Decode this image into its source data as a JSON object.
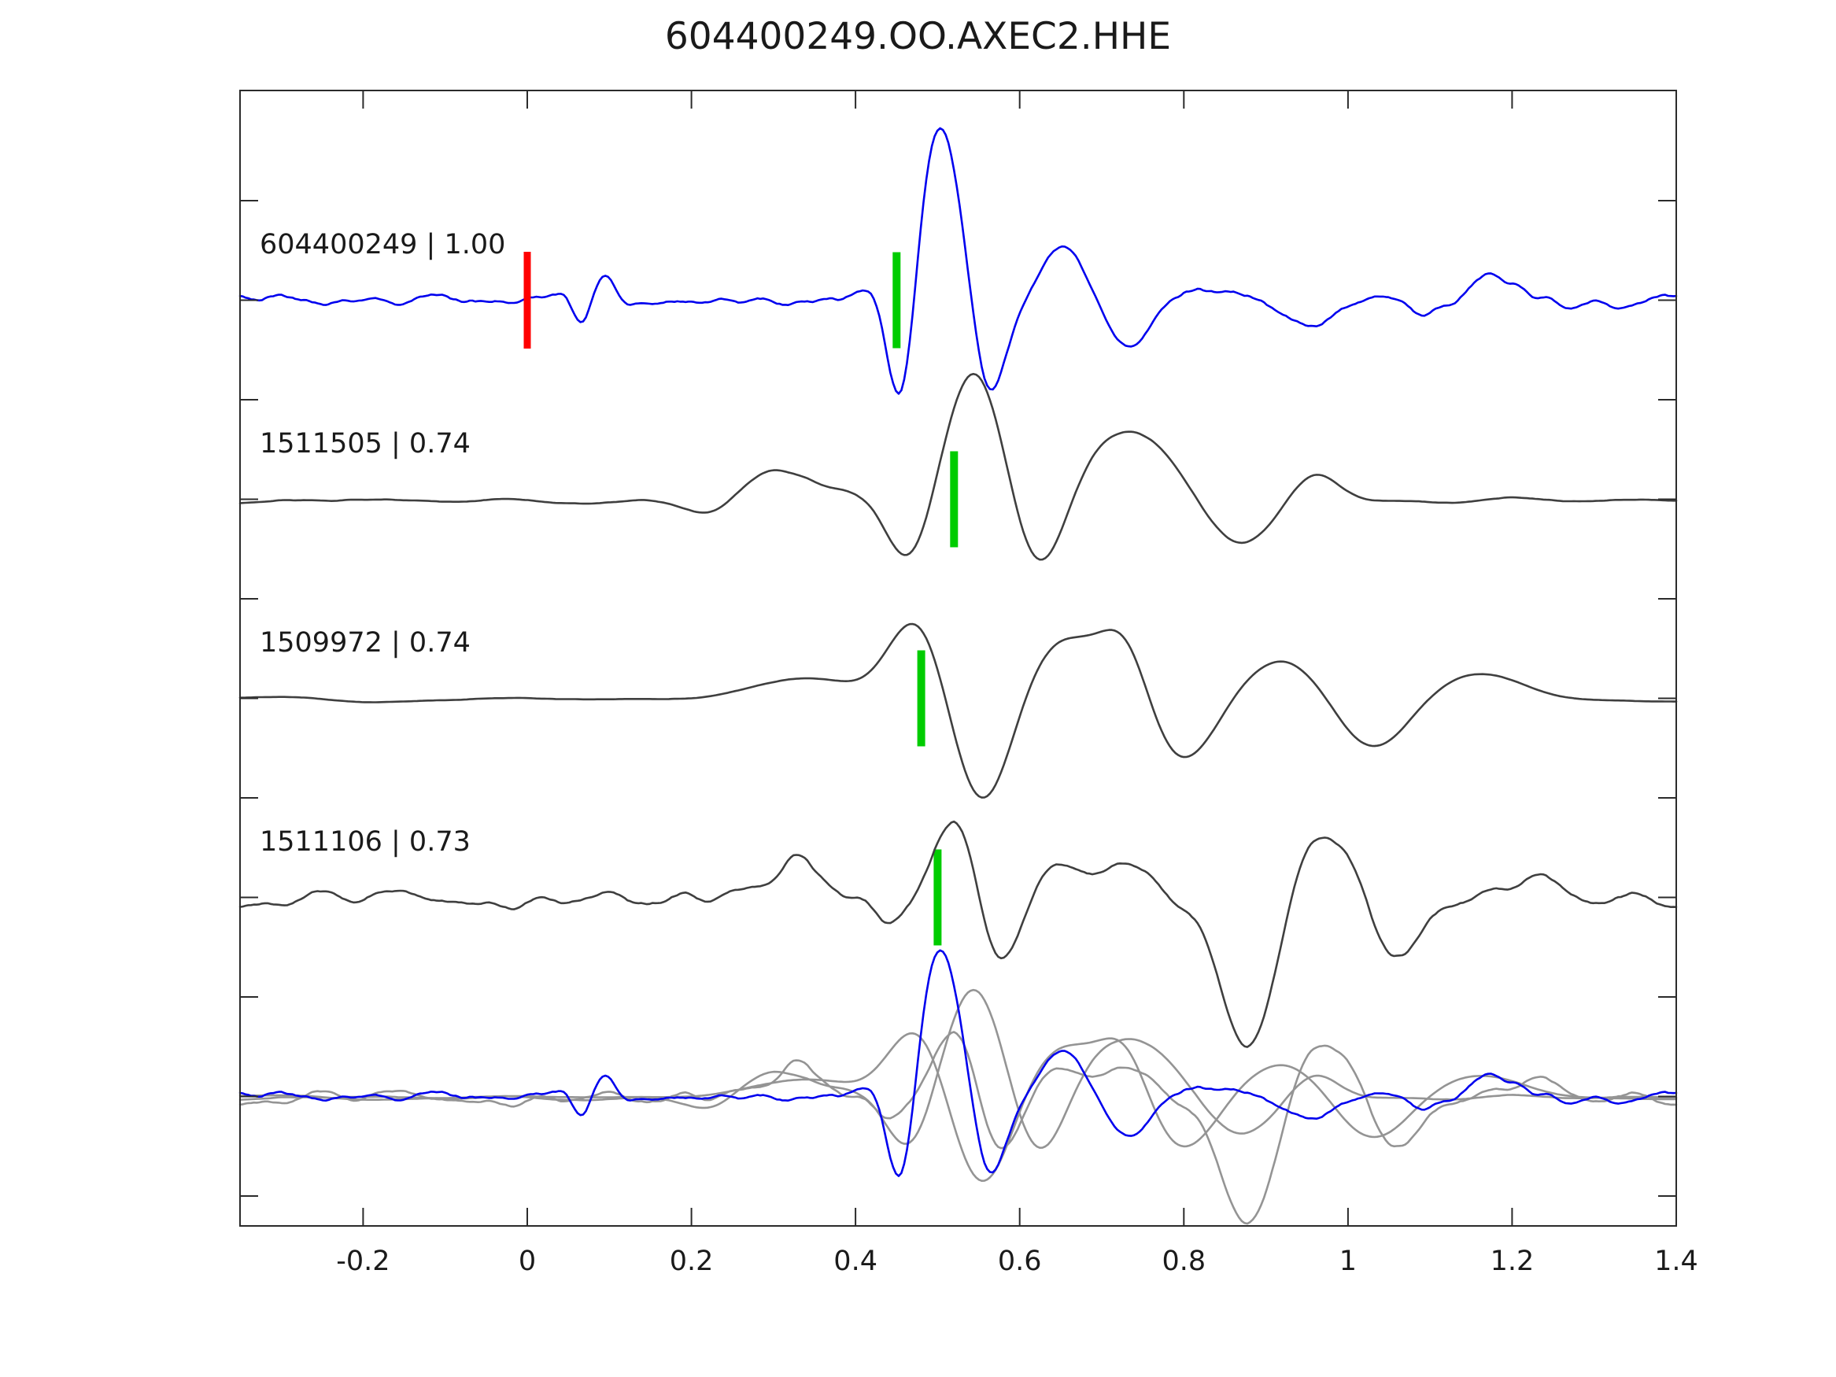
{
  "title": "604400249.OO.AXEC2.HHE",
  "colors": {
    "template_trace": "#0000ee",
    "detection_trace": "#3f3f3f",
    "overlay_gray": "#949494",
    "pick_marker": "#00cc00",
    "origin_marker": "#ff0000",
    "axis": "#2b2b2b",
    "text": "#1a1a1a"
  },
  "chart_data": {
    "type": "line",
    "title": "604400249.OO.AXEC2.HHE",
    "xlabel": "",
    "ylabel": "",
    "grid": false,
    "legend": null,
    "xlim": [
      -0.35,
      1.4
    ],
    "x_ticks": [
      -0.2,
      0,
      0.2,
      0.4,
      0.6,
      0.8,
      1,
      1.2,
      1.4
    ],
    "x_tick_labels": [
      "-0.2",
      "0",
      "0.2",
      "0.4",
      "0.6",
      "0.8",
      "1",
      "1.2",
      "1.4"
    ],
    "y_tick_count": 11,
    "description": "Template waveform (blue) and three correlated detections (dark gray), vertically offset; bottom row overlays all aligned traces (grays + blue). Green bars mark pick times, red bar marks template zero time.",
    "traces": [
      {
        "event_id": "604400249",
        "correlation": "1.00",
        "label": "604400249 | 1.00",
        "role": "template",
        "color_role": "template_trace",
        "row": 0,
        "pick_time": 0.45,
        "origin_time": 0.0,
        "noise": {
          "seed": 7,
          "amp": 13,
          "smooth": 3
        },
        "wavelets": [
          [
            0.065,
            -35,
            12,
            0.02
          ],
          [
            0.1,
            30,
            10,
            0.025
          ],
          [
            0.455,
            -110,
            9,
            0.035
          ],
          [
            0.505,
            200,
            5.5,
            0.05
          ],
          [
            0.565,
            -80,
            6,
            0.04
          ],
          [
            0.655,
            60,
            5,
            0.06
          ],
          [
            0.73,
            -45,
            4.5,
            0.08
          ],
          [
            0.95,
            -30,
            4,
            0.1
          ],
          [
            1.18,
            25,
            5,
            0.1
          ]
        ]
      },
      {
        "event_id": "1511505",
        "correlation": "0.74",
        "label": "1511505 | 0.74",
        "role": "detection",
        "color_role": "detection_trace",
        "row": 1,
        "pick_time": 0.52,
        "origin_time": null,
        "noise": {
          "seed": 21,
          "amp": 6,
          "smooth": 9
        },
        "wavelets": [
          [
            0.23,
            -28,
            3,
            0.05
          ],
          [
            0.3,
            40,
            2,
            0.1
          ],
          [
            0.465,
            -60,
            4.5,
            0.05
          ],
          [
            0.545,
            150,
            3.6,
            0.07
          ],
          [
            0.625,
            -70,
            4,
            0.06
          ],
          [
            0.73,
            80,
            2.2,
            0.1
          ],
          [
            0.87,
            -55,
            3,
            0.07
          ],
          [
            0.96,
            30,
            4,
            0.05
          ]
        ]
      },
      {
        "event_id": "1509972",
        "correlation": "0.74",
        "label": "1509972 | 0.74",
        "role": "detection",
        "color_role": "detection_trace",
        "row": 2,
        "pick_time": 0.48,
        "origin_time": null,
        "noise": {
          "seed": 33,
          "amp": 5,
          "smooth": 11
        },
        "wavelets": [
          [
            0.35,
            25,
            1.5,
            0.15
          ],
          [
            0.475,
            90,
            3,
            0.06
          ],
          [
            0.555,
            -125,
            3.2,
            0.065
          ],
          [
            0.67,
            75,
            2,
            0.1
          ],
          [
            0.73,
            40,
            5,
            0.05
          ],
          [
            0.8,
            -70,
            3,
            0.07
          ],
          [
            0.92,
            40,
            2.5,
            0.08
          ],
          [
            1.03,
            -60,
            2.8,
            0.08
          ],
          [
            1.17,
            25,
            2.5,
            0.1
          ]
        ]
      },
      {
        "event_id": "1511106",
        "correlation": "0.73",
        "label": "1511106 | 0.73",
        "role": "detection",
        "color_role": "detection_trace",
        "row": 3,
        "pick_time": 0.5,
        "origin_time": null,
        "noise": {
          "seed": 55,
          "amp": 18,
          "smooth": 4
        },
        "wavelets": [
          [
            0.33,
            65,
            6,
            0.035
          ],
          [
            0.44,
            -40,
            6,
            0.04
          ],
          [
            0.52,
            90,
            5,
            0.045
          ],
          [
            0.575,
            -70,
            5,
            0.05
          ],
          [
            0.64,
            45,
            5,
            0.05
          ],
          [
            0.72,
            45,
            3.5,
            0.07
          ],
          [
            0.875,
            -190,
            3.5,
            0.055
          ],
          [
            0.975,
            70,
            3.8,
            0.055
          ],
          [
            1.06,
            -55,
            4,
            0.06
          ],
          [
            1.22,
            35,
            4,
            0.08
          ]
        ]
      }
    ],
    "overlay": {
      "row": 4,
      "scale": 0.85,
      "gray_trace_ids": [
        "1511505",
        "1509972",
        "1511106"
      ],
      "blue_trace_id": "604400249"
    }
  }
}
